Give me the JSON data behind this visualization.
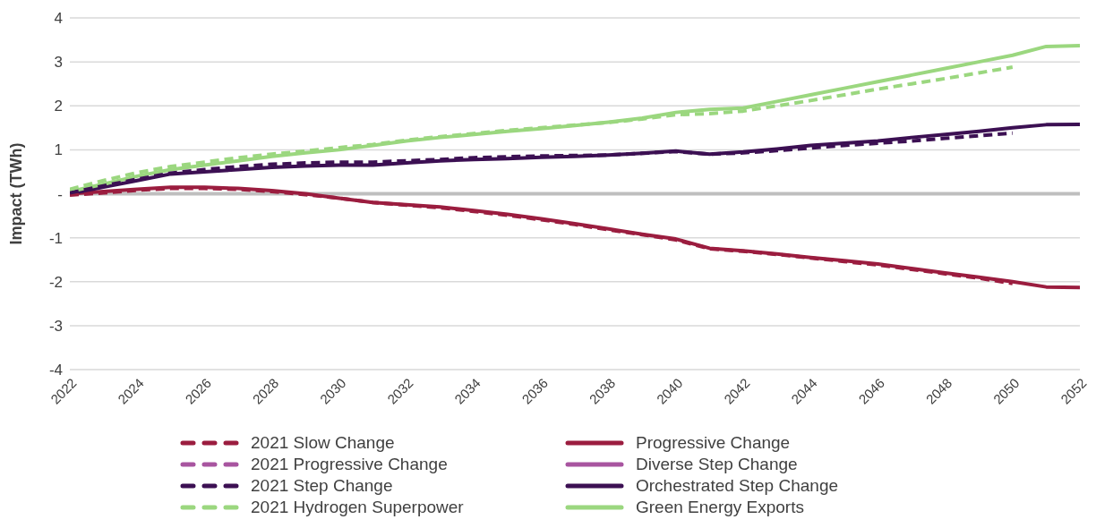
{
  "chart_data": {
    "type": "line",
    "ylabel": "Impact (TWh)",
    "x": [
      2022,
      2023,
      2024,
      2025,
      2026,
      2027,
      2028,
      2029,
      2030,
      2031,
      2032,
      2033,
      2034,
      2035,
      2036,
      2037,
      2038,
      2039,
      2040,
      2041,
      2042,
      2043,
      2044,
      2045,
      2046,
      2047,
      2048,
      2049,
      2050,
      2051,
      2052
    ],
    "xlim": [
      2022,
      2052
    ],
    "xticks": [
      2022,
      2024,
      2026,
      2028,
      2030,
      2032,
      2034,
      2036,
      2038,
      2040,
      2042,
      2044,
      2046,
      2048,
      2050,
      2052
    ],
    "ylim": [
      -4,
      4
    ],
    "yticks": [
      -4,
      -3,
      -2,
      -1,
      {
        "value": 0,
        "label": "-"
      },
      1,
      2,
      3,
      4
    ],
    "grid": "y",
    "legend": "bottom",
    "ref_lines": [
      {
        "axis": "y",
        "value": 0,
        "color": "#bfbfbf"
      }
    ],
    "series": [
      {
        "name": "2021 Slow Change",
        "color": "#9b1d3f",
        "line_style": "dashed",
        "values": [
          -0.03,
          0.02,
          0.08,
          0.12,
          0.12,
          0.1,
          0.05,
          -0.02,
          -0.1,
          -0.2,
          -0.26,
          -0.32,
          -0.4,
          -0.49,
          -0.59,
          -0.7,
          -0.82,
          -0.93,
          -1.05,
          -1.25,
          -1.31,
          -1.38,
          -1.46,
          -1.54,
          -1.62,
          -1.72,
          -1.82,
          -1.92,
          -2.04,
          null,
          null
        ]
      },
      {
        "name": "2021 Progressive Change",
        "color": "#a855a0",
        "line_style": "dashed",
        "values": [
          null,
          null,
          null,
          null,
          null,
          null,
          null,
          null,
          null,
          null,
          null,
          null,
          null,
          null,
          null,
          null,
          null,
          null,
          null,
          null,
          null,
          null,
          null,
          null,
          null,
          null,
          null,
          null,
          null,
          null,
          null
        ]
      },
      {
        "name": "2021 Step Change",
        "color": "#3c1053",
        "line_style": "dashed",
        "values": [
          0.02,
          0.18,
          0.33,
          0.47,
          0.55,
          0.62,
          0.67,
          0.7,
          0.72,
          0.72,
          0.75,
          0.78,
          0.82,
          0.84,
          0.86,
          0.87,
          0.88,
          0.92,
          0.96,
          0.9,
          0.93,
          0.98,
          1.04,
          1.1,
          1.15,
          1.2,
          1.26,
          1.32,
          1.38,
          null,
          null
        ]
      },
      {
        "name": "2021 Hydrogen Superpower",
        "color": "#9bd77f",
        "line_style": "dashed",
        "values": [
          0.1,
          0.3,
          0.48,
          0.62,
          0.72,
          0.82,
          0.9,
          0.97,
          1.05,
          1.12,
          1.22,
          1.3,
          1.37,
          1.44,
          1.5,
          1.56,
          1.62,
          1.7,
          1.8,
          1.82,
          1.88,
          2.0,
          2.12,
          2.25,
          2.38,
          2.5,
          2.62,
          2.75,
          2.88,
          null,
          null
        ]
      },
      {
        "name": "Progressive Change",
        "color": "#9b1d3f",
        "line_style": "solid",
        "values": [
          0,
          0.05,
          0.1,
          0.15,
          0.15,
          0.12,
          0.07,
          0.0,
          -0.1,
          -0.2,
          -0.25,
          -0.3,
          -0.38,
          -0.47,
          -0.57,
          -0.68,
          -0.8,
          -0.92,
          -1.03,
          -1.24,
          -1.3,
          -1.37,
          -1.45,
          -1.52,
          -1.6,
          -1.7,
          -1.8,
          -1.9,
          -2.0,
          -2.12,
          -2.13
        ]
      },
      {
        "name": "Diverse Step Change",
        "color": "#a855a0",
        "line_style": "solid",
        "values": [
          null,
          null,
          null,
          null,
          null,
          null,
          null,
          null,
          null,
          null,
          null,
          null,
          null,
          null,
          null,
          null,
          null,
          null,
          null,
          null,
          null,
          null,
          null,
          null,
          null,
          null,
          null,
          null,
          null,
          null,
          null
        ]
      },
      {
        "name": "Orchestrated Step Change",
        "color": "#3c1053",
        "line_style": "solid",
        "values": [
          0,
          0.15,
          0.3,
          0.45,
          0.5,
          0.55,
          0.6,
          0.63,
          0.65,
          0.65,
          0.7,
          0.75,
          0.78,
          0.8,
          0.83,
          0.85,
          0.88,
          0.92,
          0.97,
          0.9,
          0.95,
          1.02,
          1.1,
          1.15,
          1.2,
          1.28,
          1.35,
          1.42,
          1.5,
          1.57,
          1.58
        ]
      },
      {
        "name": "Green Energy Exports",
        "color": "#9bd77f",
        "line_style": "solid",
        "values": [
          0.05,
          0.22,
          0.4,
          0.55,
          0.65,
          0.75,
          0.85,
          0.93,
          1.0,
          1.1,
          1.2,
          1.28,
          1.35,
          1.42,
          1.48,
          1.55,
          1.63,
          1.72,
          1.85,
          1.92,
          1.95,
          2.1,
          2.25,
          2.4,
          2.55,
          2.7,
          2.85,
          3.0,
          3.15,
          3.35,
          3.37
        ]
      }
    ]
  }
}
